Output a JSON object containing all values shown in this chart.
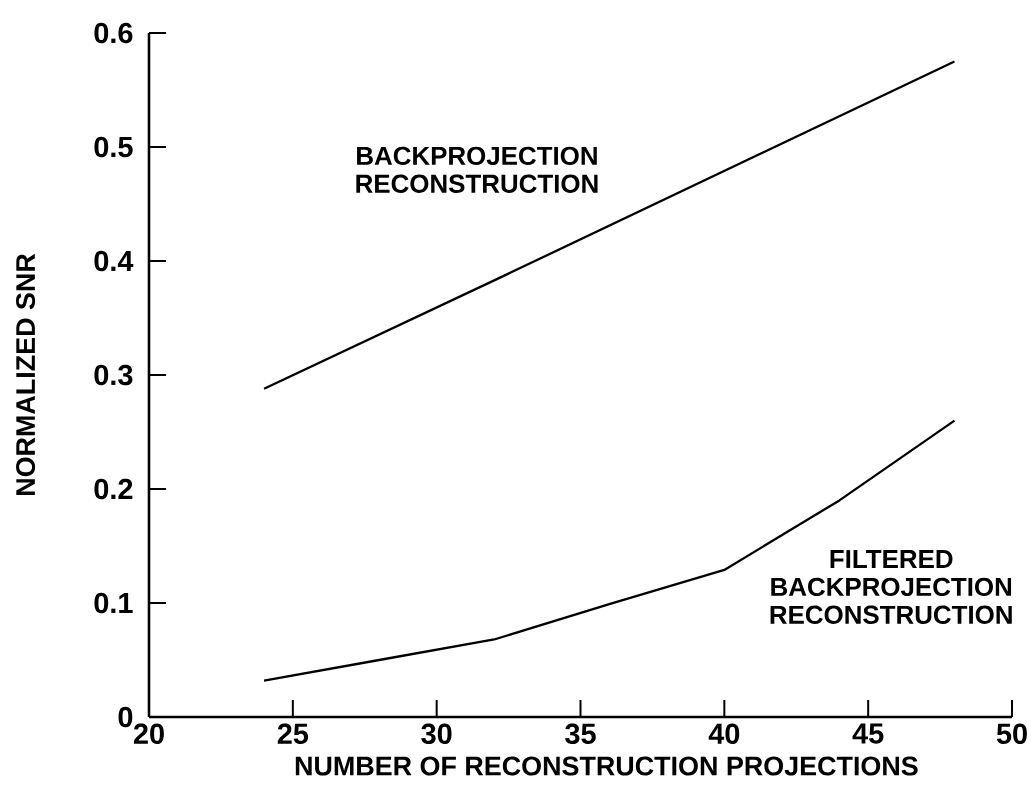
{
  "chart_data": {
    "type": "line",
    "xlabel": "NUMBER OF RECONSTRUCTION PROJECTIONS",
    "ylabel": "NORMALIZED SNR",
    "xlim": [
      20,
      50
    ],
    "xticks": [
      20,
      25,
      30,
      35,
      40,
      45,
      50
    ],
    "ylim": [
      0,
      0.6
    ],
    "yticks": [
      0,
      0.1,
      0.2,
      0.3,
      0.4,
      0.5,
      0.6
    ],
    "series": [
      {
        "name": "BACKPROJECTION RECONSTRUCTION",
        "color": "#000000",
        "x": [
          24,
          32,
          40,
          48
        ],
        "values": [
          0.288,
          0.383,
          0.479,
          0.575
        ]
      },
      {
        "name": "FILTERED BACKPROJECTION RECONSTRUCTION",
        "color": "#000000",
        "x": [
          24,
          28,
          32,
          36,
          40,
          44,
          48
        ],
        "values": [
          0.032,
          0.05,
          0.068,
          0.099,
          0.129,
          0.19,
          0.26
        ]
      }
    ]
  }
}
